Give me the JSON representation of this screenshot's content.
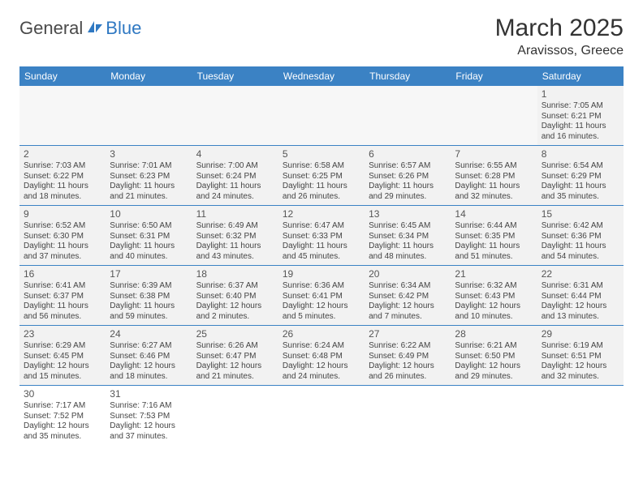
{
  "logo": {
    "part1": "General",
    "part2": "Blue"
  },
  "title": "March 2025",
  "location": "Aravissos, Greece",
  "colors": {
    "header_bg": "#3b82c4",
    "header_text": "#ffffff",
    "cell_bg": "#f2f2f2",
    "border": "#3b82c4",
    "logo_gray": "#4a4a4a",
    "logo_blue": "#2f78c2"
  },
  "weekdays": [
    "Sunday",
    "Monday",
    "Tuesday",
    "Wednesday",
    "Thursday",
    "Friday",
    "Saturday"
  ],
  "labels": {
    "sunrise": "Sunrise:",
    "sunset": "Sunset:",
    "daylight": "Daylight:"
  },
  "weeks": [
    [
      null,
      null,
      null,
      null,
      null,
      null,
      {
        "d": "1",
        "sr": "7:05 AM",
        "ss": "6:21 PM",
        "dl": "11 hours and 16 minutes."
      }
    ],
    [
      {
        "d": "2",
        "sr": "7:03 AM",
        "ss": "6:22 PM",
        "dl": "11 hours and 18 minutes."
      },
      {
        "d": "3",
        "sr": "7:01 AM",
        "ss": "6:23 PM",
        "dl": "11 hours and 21 minutes."
      },
      {
        "d": "4",
        "sr": "7:00 AM",
        "ss": "6:24 PM",
        "dl": "11 hours and 24 minutes."
      },
      {
        "d": "5",
        "sr": "6:58 AM",
        "ss": "6:25 PM",
        "dl": "11 hours and 26 minutes."
      },
      {
        "d": "6",
        "sr": "6:57 AM",
        "ss": "6:26 PM",
        "dl": "11 hours and 29 minutes."
      },
      {
        "d": "7",
        "sr": "6:55 AM",
        "ss": "6:28 PM",
        "dl": "11 hours and 32 minutes."
      },
      {
        "d": "8",
        "sr": "6:54 AM",
        "ss": "6:29 PM",
        "dl": "11 hours and 35 minutes."
      }
    ],
    [
      {
        "d": "9",
        "sr": "6:52 AM",
        "ss": "6:30 PM",
        "dl": "11 hours and 37 minutes."
      },
      {
        "d": "10",
        "sr": "6:50 AM",
        "ss": "6:31 PM",
        "dl": "11 hours and 40 minutes."
      },
      {
        "d": "11",
        "sr": "6:49 AM",
        "ss": "6:32 PM",
        "dl": "11 hours and 43 minutes."
      },
      {
        "d": "12",
        "sr": "6:47 AM",
        "ss": "6:33 PM",
        "dl": "11 hours and 45 minutes."
      },
      {
        "d": "13",
        "sr": "6:45 AM",
        "ss": "6:34 PM",
        "dl": "11 hours and 48 minutes."
      },
      {
        "d": "14",
        "sr": "6:44 AM",
        "ss": "6:35 PM",
        "dl": "11 hours and 51 minutes."
      },
      {
        "d": "15",
        "sr": "6:42 AM",
        "ss": "6:36 PM",
        "dl": "11 hours and 54 minutes."
      }
    ],
    [
      {
        "d": "16",
        "sr": "6:41 AM",
        "ss": "6:37 PM",
        "dl": "11 hours and 56 minutes."
      },
      {
        "d": "17",
        "sr": "6:39 AM",
        "ss": "6:38 PM",
        "dl": "11 hours and 59 minutes."
      },
      {
        "d": "18",
        "sr": "6:37 AM",
        "ss": "6:40 PM",
        "dl": "12 hours and 2 minutes."
      },
      {
        "d": "19",
        "sr": "6:36 AM",
        "ss": "6:41 PM",
        "dl": "12 hours and 5 minutes."
      },
      {
        "d": "20",
        "sr": "6:34 AM",
        "ss": "6:42 PM",
        "dl": "12 hours and 7 minutes."
      },
      {
        "d": "21",
        "sr": "6:32 AM",
        "ss": "6:43 PM",
        "dl": "12 hours and 10 minutes."
      },
      {
        "d": "22",
        "sr": "6:31 AM",
        "ss": "6:44 PM",
        "dl": "12 hours and 13 minutes."
      }
    ],
    [
      {
        "d": "23",
        "sr": "6:29 AM",
        "ss": "6:45 PM",
        "dl": "12 hours and 15 minutes."
      },
      {
        "d": "24",
        "sr": "6:27 AM",
        "ss": "6:46 PM",
        "dl": "12 hours and 18 minutes."
      },
      {
        "d": "25",
        "sr": "6:26 AM",
        "ss": "6:47 PM",
        "dl": "12 hours and 21 minutes."
      },
      {
        "d": "26",
        "sr": "6:24 AM",
        "ss": "6:48 PM",
        "dl": "12 hours and 24 minutes."
      },
      {
        "d": "27",
        "sr": "6:22 AM",
        "ss": "6:49 PM",
        "dl": "12 hours and 26 minutes."
      },
      {
        "d": "28",
        "sr": "6:21 AM",
        "ss": "6:50 PM",
        "dl": "12 hours and 29 minutes."
      },
      {
        "d": "29",
        "sr": "6:19 AM",
        "ss": "6:51 PM",
        "dl": "12 hours and 32 minutes."
      }
    ],
    [
      {
        "d": "30",
        "sr": "7:17 AM",
        "ss": "7:52 PM",
        "dl": "12 hours and 35 minutes."
      },
      {
        "d": "31",
        "sr": "7:16 AM",
        "ss": "7:53 PM",
        "dl": "12 hours and 37 minutes."
      },
      null,
      null,
      null,
      null,
      null
    ]
  ]
}
